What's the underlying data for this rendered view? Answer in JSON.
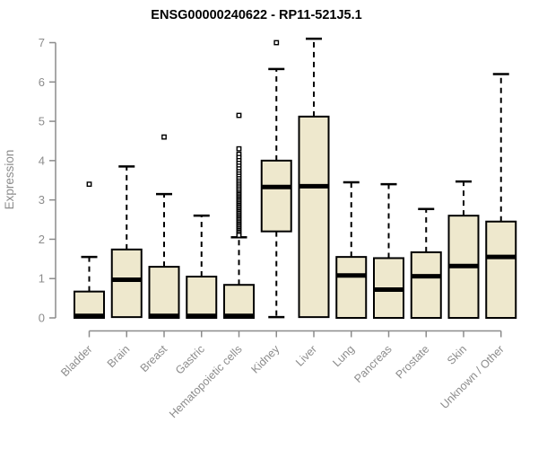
{
  "chart_data": {
    "type": "boxplot",
    "title": "ENSG00000240622 - RP11-521J5.1",
    "ylabel": "Expression",
    "xlabel": "",
    "ylim": [
      0,
      7
    ],
    "yticks": [
      0,
      1,
      2,
      3,
      4,
      5,
      6,
      7
    ],
    "grid": false,
    "legend": false,
    "colors": {
      "box_fill": "#EEE8CD",
      "box_border": "#000000",
      "axis": "#8C8C8C",
      "tick_labels": "#8C8C8C",
      "title": "#000000",
      "background": "#FFFFFF"
    },
    "categories": [
      "Bladder",
      "Brain",
      "Breast",
      "Gastric",
      "Hematopoietic cells",
      "Kidney",
      "Liver",
      "Lung",
      "Pancreas",
      "Prostate",
      "Skin",
      "Unknown / Other"
    ],
    "boxes": [
      {
        "category": "Bladder",
        "whisker_low": null,
        "q1": 0,
        "median": 0.05,
        "q3": 0.67,
        "whisker_high": 1.55,
        "outliers": [
          3.4
        ]
      },
      {
        "category": "Brain",
        "whisker_low": null,
        "q1": 0.02,
        "median": 0.97,
        "q3": 1.74,
        "whisker_high": 3.85,
        "outliers": []
      },
      {
        "category": "Breast",
        "whisker_low": null,
        "q1": 0,
        "median": 0.05,
        "q3": 1.3,
        "whisker_high": 3.15,
        "outliers": [
          4.6
        ]
      },
      {
        "category": "Gastric",
        "whisker_low": null,
        "q1": 0,
        "median": 0.05,
        "q3": 1.05,
        "whisker_high": 2.6,
        "outliers": []
      },
      {
        "category": "Hematopoietic cells",
        "whisker_low": null,
        "q1": 0,
        "median": 0.05,
        "q3": 0.84,
        "whisker_high": 2.05,
        "outliers": [
          5.15,
          4.3,
          4.16,
          4.08,
          4.0,
          3.93,
          3.86,
          3.79,
          3.72,
          3.66,
          3.6,
          3.54,
          3.48,
          3.43,
          3.38,
          3.33,
          3.28,
          3.23,
          3.18,
          3.14,
          3.1,
          3.06,
          3.02,
          2.98,
          2.94,
          2.9,
          2.86,
          2.82,
          2.78,
          2.74,
          2.7,
          2.66,
          2.62,
          2.58,
          2.54,
          2.5,
          2.46,
          2.42,
          2.38,
          2.34,
          2.3,
          2.26,
          2.22,
          2.18,
          2.14,
          2.1
        ]
      },
      {
        "category": "Kidney",
        "whisker_low": 0.02,
        "q1": 2.2,
        "median": 3.33,
        "q3": 4.0,
        "whisker_high": 6.33,
        "outliers": [
          7.0
        ]
      },
      {
        "category": "Liver",
        "whisker_low": null,
        "q1": 0.02,
        "median": 3.35,
        "q3": 5.12,
        "whisker_high": 7.1,
        "outliers": []
      },
      {
        "category": "Lung",
        "whisker_low": null,
        "q1": 0,
        "median": 1.08,
        "q3": 1.55,
        "whisker_high": 3.45,
        "outliers": []
      },
      {
        "category": "Pancreas",
        "whisker_low": null,
        "q1": 0,
        "median": 0.72,
        "q3": 1.52,
        "whisker_high": 3.4,
        "outliers": []
      },
      {
        "category": "Prostate",
        "whisker_low": null,
        "q1": 0,
        "median": 1.06,
        "q3": 1.67,
        "whisker_high": 2.77,
        "outliers": []
      },
      {
        "category": "Skin",
        "whisker_low": null,
        "q1": 0,
        "median": 1.32,
        "q3": 2.6,
        "whisker_high": 3.47,
        "outliers": []
      },
      {
        "category": "Unknown / Other",
        "whisker_low": null,
        "q1": 0,
        "median": 1.55,
        "q3": 2.45,
        "whisker_high": 6.2,
        "outliers": []
      }
    ]
  }
}
